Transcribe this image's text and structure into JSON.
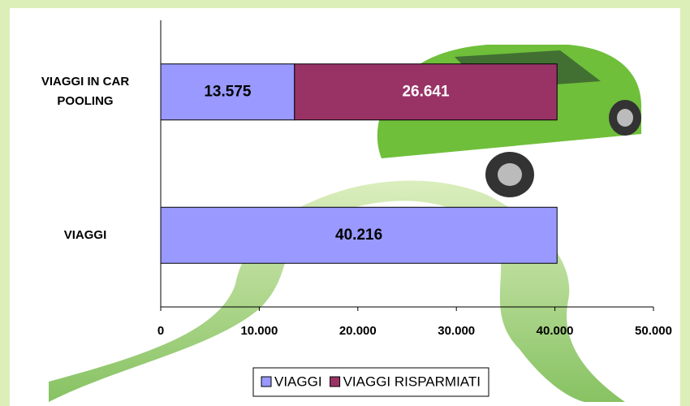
{
  "chart_data": {
    "type": "hbar_stacked",
    "categories": [
      "VIAGGI IN CAR POOLING",
      "VIAGGI"
    ],
    "series": [
      {
        "name": "VIAGGI",
        "color": "#9999ff",
        "values": [
          13575,
          40216
        ],
        "value_labels": [
          "13.575",
          "40.216"
        ]
      },
      {
        "name": "VIAGGI RISPARMIATI",
        "color": "#993366",
        "values": [
          26641,
          null
        ],
        "value_labels": [
          "26.641",
          null
        ]
      }
    ],
    "xlim": [
      0,
      50000
    ],
    "xticks": [
      0,
      {
        "value": 10000,
        "label": "10.000"
      },
      {
        "value": 20000,
        "label": "20.000"
      },
      {
        "value": 30000,
        "label": "30.000"
      },
      {
        "value": 40000,
        "label": "40.000"
      },
      {
        "value": 50000,
        "label": "50.000"
      }
    ],
    "legend": "bottom"
  }
}
